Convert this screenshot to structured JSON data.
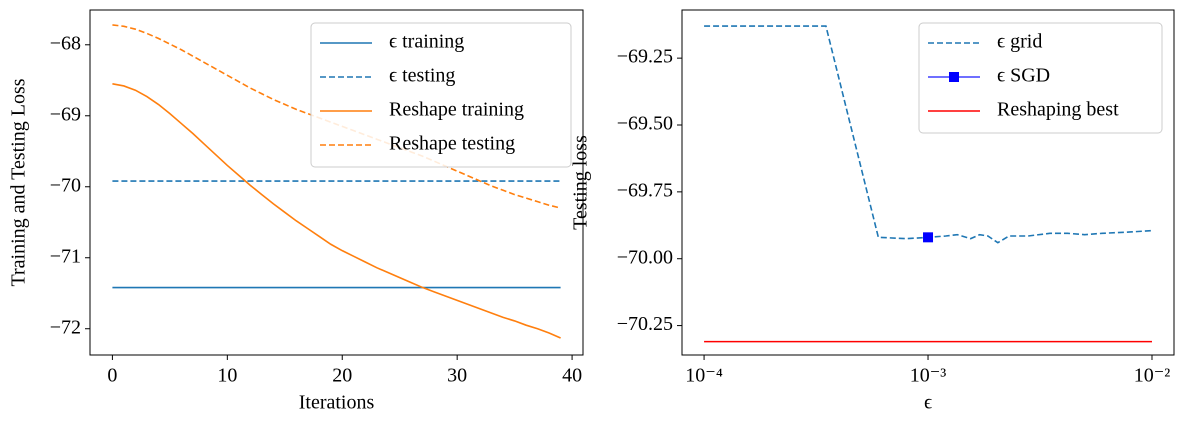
{
  "chart_data": [
    {
      "type": "line",
      "xlabel": "Iterations",
      "ylabel": "Training and Testing Loss",
      "x": [
        0,
        1,
        2,
        3,
        4,
        5,
        6,
        7,
        8,
        9,
        10,
        11,
        12,
        13,
        14,
        15,
        16,
        17,
        18,
        19,
        20,
        21,
        22,
        23,
        24,
        25,
        26,
        27,
        28,
        29,
        30,
        31,
        32,
        33,
        34,
        35,
        36,
        37,
        38,
        39
      ],
      "xlim": [
        -1.95,
        40.95
      ],
      "xticks": [
        0,
        10,
        20,
        30,
        40
      ],
      "ylim": [
        -72.37,
        -67.51
      ],
      "yticks": [
        {
          "value": -72,
          "label": "−72"
        },
        {
          "value": -71,
          "label": "−71"
        },
        {
          "value": -70,
          "label": "−70"
        },
        {
          "value": -69,
          "label": "−69"
        },
        {
          "value": -68,
          "label": "−68"
        }
      ],
      "legend": "upper right",
      "series": [
        {
          "name": "ϵ training",
          "color": "#1f77b4",
          "linestyle": "solid",
          "values": [
            -71.42,
            -71.42,
            -71.42,
            -71.42,
            -71.42,
            -71.42,
            -71.42,
            -71.42,
            -71.42,
            -71.42,
            -71.42,
            -71.42,
            -71.42,
            -71.42,
            -71.42,
            -71.42,
            -71.42,
            -71.42,
            -71.42,
            -71.42,
            -71.42,
            -71.42,
            -71.42,
            -71.42,
            -71.42,
            -71.42,
            -71.42,
            -71.42,
            -71.42,
            -71.42,
            -71.42,
            -71.42,
            -71.42,
            -71.42,
            -71.42,
            -71.42,
            -71.42,
            -71.42,
            -71.42,
            -71.42
          ]
        },
        {
          "name": "ϵ testing",
          "color": "#1f77b4",
          "linestyle": "dashed",
          "values": [
            -69.92,
            -69.92,
            -69.92,
            -69.92,
            -69.92,
            -69.92,
            -69.92,
            -69.92,
            -69.92,
            -69.92,
            -69.92,
            -69.92,
            -69.92,
            -69.92,
            -69.92,
            -69.92,
            -69.92,
            -69.92,
            -69.92,
            -69.92,
            -69.92,
            -69.92,
            -69.92,
            -69.92,
            -69.92,
            -69.92,
            -69.92,
            -69.92,
            -69.92,
            -69.92,
            -69.92,
            -69.92,
            -69.92,
            -69.92,
            -69.92,
            -69.92,
            -69.92,
            -69.92,
            -69.92,
            -69.92
          ]
        },
        {
          "name": "Reshape training",
          "color": "#ff7f0e",
          "linestyle": "solid",
          "values": [
            -68.55,
            -68.58,
            -68.64,
            -68.73,
            -68.84,
            -68.97,
            -69.11,
            -69.25,
            -69.4,
            -69.55,
            -69.7,
            -69.84,
            -69.98,
            -70.11,
            -70.24,
            -70.36,
            -70.48,
            -70.59,
            -70.7,
            -70.81,
            -70.9,
            -70.98,
            -71.06,
            -71.14,
            -71.21,
            -71.28,
            -71.35,
            -71.42,
            -71.48,
            -71.54,
            -71.6,
            -71.66,
            -71.72,
            -71.78,
            -71.84,
            -71.89,
            -71.95,
            -72.0,
            -72.06,
            -72.13
          ]
        },
        {
          "name": "Reshape testing",
          "color": "#ff7f0e",
          "linestyle": "dashed",
          "values": [
            -67.72,
            -67.74,
            -67.78,
            -67.84,
            -67.91,
            -67.99,
            -68.07,
            -68.16,
            -68.25,
            -68.34,
            -68.43,
            -68.52,
            -68.61,
            -68.69,
            -68.77,
            -68.84,
            -68.91,
            -68.97,
            -69.03,
            -69.09,
            -69.15,
            -69.21,
            -69.27,
            -69.33,
            -69.39,
            -69.45,
            -69.51,
            -69.57,
            -69.64,
            -69.71,
            -69.78,
            -69.85,
            -69.92,
            -69.99,
            -70.05,
            -70.11,
            -70.16,
            -70.21,
            -70.26,
            -70.3
          ]
        }
      ]
    },
    {
      "type": "line",
      "xlabel": "ϵ",
      "ylabel": "Testing loss",
      "xscale": "log",
      "xlim": [
        7.97e-05,
        0.01254
      ],
      "xticks": [
        {
          "value": 0.0001,
          "label": "10⁻⁴"
        },
        {
          "value": 0.001,
          "label": "10⁻³"
        },
        {
          "value": 0.01,
          "label": "10⁻²"
        }
      ],
      "ylim": [
        -70.36,
        -69.07
      ],
      "yticks": [
        {
          "value": -70.25,
          "label": "−70.25"
        },
        {
          "value": -70,
          "label": "−70.00"
        },
        {
          "value": -69.75,
          "label": "−69.75"
        },
        {
          "value": -69.5,
          "label": "−69.50"
        },
        {
          "value": -69.25,
          "label": "−69.25"
        }
      ],
      "legend": "upper right",
      "series": [
        {
          "name": "ϵ grid",
          "color": "#1f77b4",
          "linestyle": "dashed",
          "x": [
            0.0001,
            0.00035,
            0.0006,
            0.0008,
            0.001,
            0.0012,
            0.00135,
            0.00155,
            0.0017,
            0.00185,
            0.00205,
            0.0023,
            0.0028,
            0.0035,
            0.0042,
            0.005,
            0.006,
            0.008,
            0.01
          ],
          "values": [
            -69.13,
            -69.13,
            -69.92,
            -69.925,
            -69.92,
            -69.915,
            -69.91,
            -69.925,
            -69.91,
            -69.915,
            -69.94,
            -69.915,
            -69.915,
            -69.905,
            -69.905,
            -69.91,
            -69.905,
            -69.9,
            -69.895
          ]
        },
        {
          "name": "ϵ SGD",
          "color": "#0000ff",
          "linestyle": "solid",
          "marker": "square",
          "x": [
            0.001
          ],
          "values": [
            -69.92
          ]
        },
        {
          "name": "Reshaping best",
          "color": "#ff0000",
          "linestyle": "solid",
          "x": [
            0.0001,
            0.01
          ],
          "values": [
            -70.31,
            -70.31
          ]
        }
      ]
    }
  ]
}
